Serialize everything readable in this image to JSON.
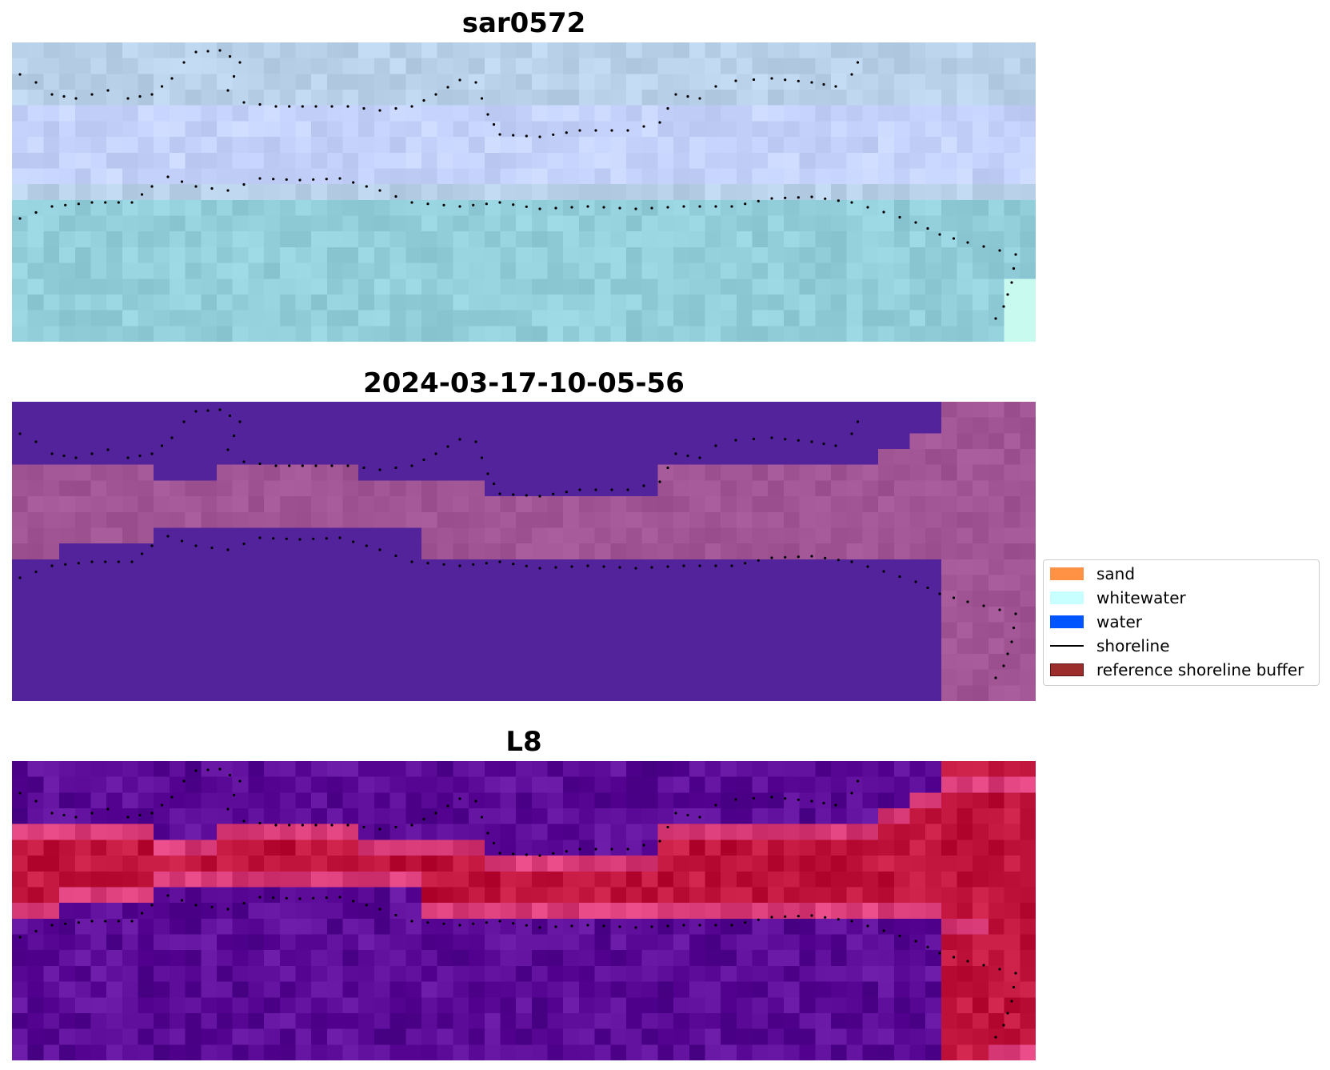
{
  "panels": [
    {
      "title": "sar0572",
      "style": "sar"
    },
    {
      "title": "2024-03-17-10-05-56",
      "style": "classification"
    },
    {
      "title": "L8",
      "style": "index"
    }
  ],
  "legend": {
    "items": [
      {
        "label": "sand",
        "kind": "swatch",
        "color": "#ff9245",
        "edge": "#ff9245"
      },
      {
        "label": "whitewater",
        "kind": "swatch",
        "color": "#c8ffff",
        "edge": "#c8ffff"
      },
      {
        "label": "water",
        "kind": "swatch",
        "color": "#0055ff",
        "edge": "#0055ff"
      },
      {
        "label": "shoreline",
        "kind": "line",
        "color": "#000000"
      },
      {
        "label": "reference shoreline buffer",
        "kind": "swatch",
        "color": "#9b2d2d",
        "edge": "#5a1010"
      }
    ]
  },
  "colors": {
    "sar_water": "#93cfda",
    "sar_land": "#b9d2ea",
    "classification_water": "#52239b",
    "classification_land": "#a15595",
    "index_water": "#5a0a96",
    "index_land": "#c0143c",
    "shoreline_dots": "#000000"
  }
}
